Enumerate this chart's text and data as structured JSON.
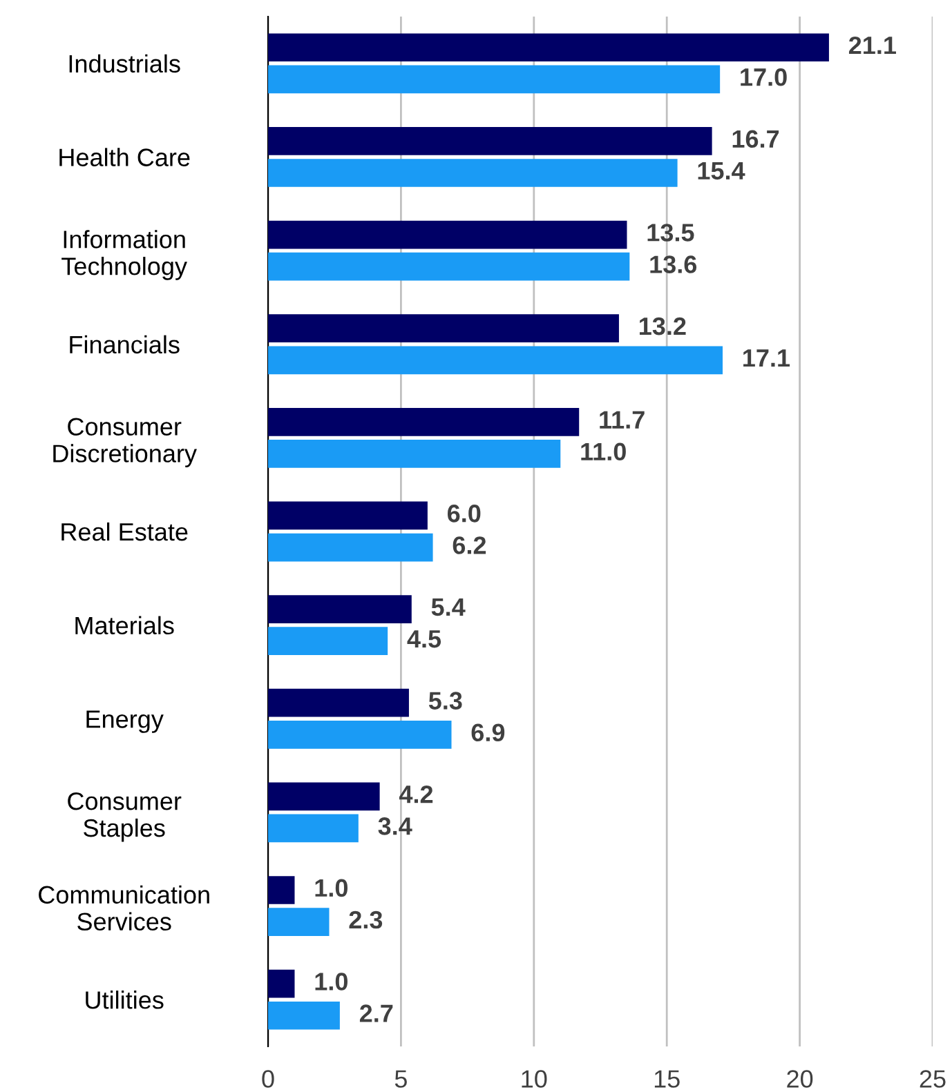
{
  "chart_data": {
    "type": "bar",
    "orientation": "horizontal",
    "categories": [
      "Industrials",
      "Health Care",
      "Information\nTechnology",
      "Financials",
      "Consumer\nDiscretionary",
      "Real Estate",
      "Materials",
      "Energy",
      "Consumer\nStaples",
      "Communication\nServices",
      "Utilities"
    ],
    "series": [
      {
        "color": "#000066",
        "values": [
          21.1,
          16.7,
          13.5,
          13.2,
          11.7,
          6.0,
          5.4,
          5.3,
          4.2,
          1.0,
          1.0
        ]
      },
      {
        "color": "#1a9bf5",
        "values": [
          17.0,
          15.4,
          13.6,
          17.1,
          11.0,
          6.2,
          4.5,
          6.9,
          3.4,
          2.3,
          2.7
        ]
      }
    ],
    "value_labels": [
      [
        "21.1",
        "16.7",
        "13.5",
        "13.2",
        "11.7",
        "6.0",
        "5.4",
        "5.3",
        "4.2",
        "1.0",
        "1.0"
      ],
      [
        "17.0",
        "15.4",
        "13.6",
        "17.1",
        "11.0",
        "6.2",
        "4.5",
        "6.9",
        "3.4",
        "2.3",
        "2.7"
      ]
    ],
    "xlim": [
      0,
      25
    ],
    "xticks": [
      0,
      5,
      10,
      15,
      20,
      25
    ],
    "grid": "x",
    "legend": false
  }
}
